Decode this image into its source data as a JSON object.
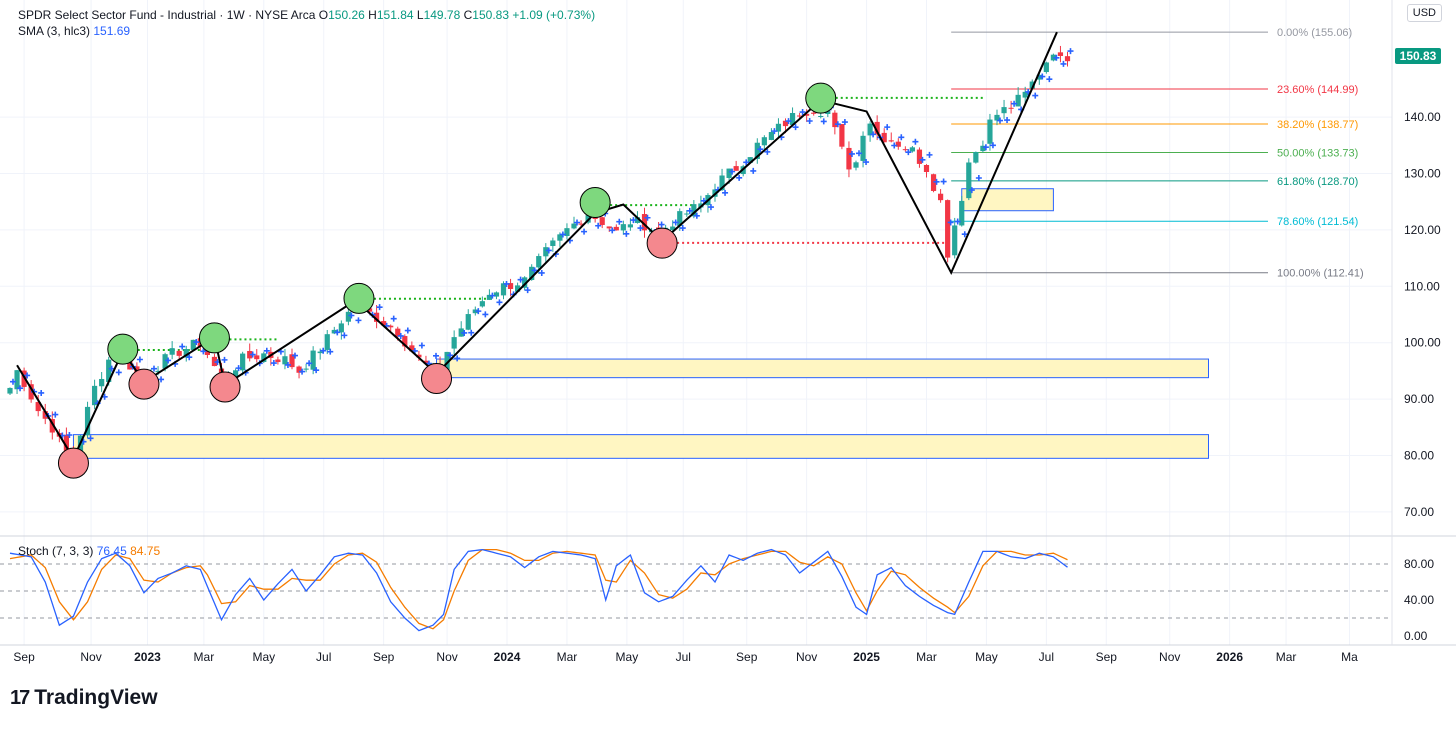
{
  "legend": {
    "title": "SPDR Select Sector Fund - Industrial · 1W · NYSE Arca",
    "open_label": "O",
    "open": "150.26",
    "high_label": "H",
    "high": "151.84",
    "low_label": "L",
    "low": "149.78",
    "close_label": "C",
    "close": "150.83",
    "change": "+1.09 (+0.73%)",
    "sma_label": "SMA (3, hlc3)",
    "sma_value": "151.69",
    "stoch_label": "Stoch (7, 3, 3)",
    "stoch_k": "76.45",
    "stoch_d": "84.75"
  },
  "currency": "USD",
  "last_price": "150.83",
  "brand": {
    "mark": "17",
    "name": "TradingView"
  },
  "colors": {
    "up": "#26a69a",
    "down": "#f23645",
    "sma": "#2962ff",
    "stoch_k": "#2962ff",
    "stoch_d": "#f57c00",
    "grid": "#f0f3fa",
    "zone_fill": "#fff6c2",
    "zone_border": "#2962ff",
    "high_marker": "#7ed87e",
    "low_marker": "#f4888e"
  },
  "chart_data": {
    "type": "candlestick",
    "title": "SPDR Select Sector Fund - Industrial · 1W · NYSE Arca",
    "y_axis": {
      "range": [
        63,
        160
      ],
      "ticks": [
        70,
        80,
        90,
        100,
        110,
        120,
        130,
        140
      ],
      "tick_labels": [
        "70.00",
        "80.00",
        "90.00",
        "100.00",
        "110.00",
        "120.00",
        "130.00",
        "140.00"
      ]
    },
    "x_axis": {
      "range_weeks": [
        0,
        143
      ],
      "ticks": [
        {
          "w": 2,
          "label": "Sep",
          "bold": false
        },
        {
          "w": 11.5,
          "label": "Nov",
          "bold": false
        },
        {
          "w": 19.5,
          "label": "2023",
          "bold": true
        },
        {
          "w": 27.5,
          "label": "Mar",
          "bold": false
        },
        {
          "w": 36,
          "label": "May",
          "bold": false
        },
        {
          "w": 44.5,
          "label": "Jul",
          "bold": false
        },
        {
          "w": 53,
          "label": "Sep",
          "bold": false
        },
        {
          "w": 62,
          "label": "Nov",
          "bold": false
        },
        {
          "w": 70.5,
          "label": "2024",
          "bold": true
        },
        {
          "w": 79,
          "label": "Mar",
          "bold": false
        },
        {
          "w": 87.5,
          "label": "May",
          "bold": false
        },
        {
          "w": 95.5,
          "label": "Jul",
          "bold": false
        },
        {
          "w": 104.5,
          "label": "Sep",
          "bold": false
        },
        {
          "w": 113,
          "label": "Nov",
          "bold": false
        },
        {
          "w": 121.5,
          "label": "2025",
          "bold": true
        },
        {
          "w": 130,
          "label": "Mar",
          "bold": false
        },
        {
          "w": 138.5,
          "label": "May",
          "bold": false
        },
        {
          "w": 147,
          "label": "Jul",
          "bold": false
        },
        {
          "w": 155.5,
          "label": "Sep",
          "bold": false
        },
        {
          "w": 164.5,
          "label": "Nov",
          "bold": false
        },
        {
          "w": 173,
          "label": "2026",
          "bold": true
        },
        {
          "w": 181,
          "label": "Mar",
          "bold": false
        },
        {
          "w": 190,
          "label": "Ma",
          "bold": false
        }
      ]
    },
    "swing_points": [
      {
        "w": 1,
        "price": 96
      },
      {
        "w": 9,
        "price": 79.5
      },
      {
        "w": 16,
        "price": 98.5
      },
      {
        "w": 19,
        "price": 93
      },
      {
        "w": 29,
        "price": 101
      },
      {
        "w": 30.5,
        "price": 92.5
      },
      {
        "w": 49,
        "price": 107.5
      },
      {
        "w": 60.5,
        "price": 94.5
      },
      {
        "w": 83,
        "price": 123
      },
      {
        "w": 87,
        "price": 124.5
      },
      {
        "w": 92.5,
        "price": 118
      },
      {
        "w": 115,
        "price": 143
      },
      {
        "w": 121.5,
        "price": 141
      },
      {
        "w": 133.5,
        "price": 112.41
      },
      {
        "w": 148.5,
        "price": 155.06
      }
    ],
    "swing_highs": [
      {
        "w": 16,
        "price": 98.5
      },
      {
        "w": 29,
        "price": 100.5
      },
      {
        "w": 49.5,
        "price": 107.5
      },
      {
        "w": 83,
        "price": 124.5
      },
      {
        "w": 115,
        "price": 143
      }
    ],
    "swing_lows": [
      {
        "w": 9,
        "price": 79
      },
      {
        "w": 19,
        "price": 93
      },
      {
        "w": 30.5,
        "price": 92.5
      },
      {
        "w": 60.5,
        "price": 94
      },
      {
        "w": 92.5,
        "price": 118
      }
    ],
    "support_zones": [
      {
        "from_w": 9,
        "to_w": 170,
        "low": 79.5,
        "high": 83.7
      },
      {
        "from_w": 60.5,
        "to_w": 170,
        "low": 93.8,
        "high": 97.1
      },
      {
        "from_w": 135,
        "to_w": 148,
        "low": 123.4,
        "high": 127.3
      }
    ],
    "dotted_levels": [
      {
        "from_w": 16,
        "to_w": 29,
        "price": 98.7,
        "color": "green"
      },
      {
        "from_w": 29,
        "to_w": 38,
        "price": 100.6,
        "color": "green"
      },
      {
        "from_w": 49.5,
        "to_w": 68,
        "price": 107.8,
        "color": "green"
      },
      {
        "from_w": 83,
        "to_w": 97,
        "price": 124.4,
        "color": "green"
      },
      {
        "from_w": 115,
        "to_w": 138,
        "price": 143.4,
        "color": "green"
      },
      {
        "from_w": 92.5,
        "to_w": 133,
        "price": 117.7,
        "color": "red"
      }
    ],
    "fibonacci": {
      "from_w": 133.5,
      "to_w": 170,
      "levels": [
        {
          "label": "0.00% (155.06)",
          "price": 155.06,
          "color": "#9598a1"
        },
        {
          "label": "23.60% (144.99)",
          "price": 144.99,
          "color": "#f23645"
        },
        {
          "label": "38.20% (138.77)",
          "price": 138.77,
          "color": "#ff9800"
        },
        {
          "label": "50.00% (133.73)",
          "price": 133.73,
          "color": "#4caf50"
        },
        {
          "label": "61.80% (128.70)",
          "price": 128.7,
          "color": "#089981"
        },
        {
          "label": "78.60% (121.54)",
          "price": 121.54,
          "color": "#00bcd4"
        },
        {
          "label": "100.00% (112.41)",
          "price": 112.41,
          "color": "#787b86"
        }
      ]
    },
    "stochastic": {
      "title": "Stoch (7, 3, 3)",
      "y_ticks": [
        0,
        40,
        80
      ],
      "y_tick_labels": [
        "0.00",
        "40.00",
        "80.00"
      ],
      "bands": [
        20,
        50,
        80
      ],
      "range": [
        -5,
        100
      ],
      "k_anchors": [
        [
          0,
          92
        ],
        [
          3,
          88
        ],
        [
          5,
          60
        ],
        [
          7,
          12
        ],
        [
          9,
          22
        ],
        [
          11,
          60
        ],
        [
          13,
          86
        ],
        [
          15,
          92
        ],
        [
          17,
          78
        ],
        [
          19,
          48
        ],
        [
          21,
          64
        ],
        [
          23,
          70
        ],
        [
          25,
          78
        ],
        [
          27,
          74
        ],
        [
          28,
          55
        ],
        [
          30,
          18
        ],
        [
          32,
          46
        ],
        [
          34,
          64
        ],
        [
          36,
          40
        ],
        [
          38,
          58
        ],
        [
          40,
          74
        ],
        [
          42,
          50
        ],
        [
          44,
          68
        ],
        [
          46,
          88
        ],
        [
          48,
          92
        ],
        [
          50,
          90
        ],
        [
          52,
          70
        ],
        [
          54,
          38
        ],
        [
          56,
          20
        ],
        [
          58,
          6
        ],
        [
          60,
          12
        ],
        [
          61.5,
          24
        ],
        [
          63,
          74
        ],
        [
          65,
          94
        ],
        [
          67,
          96
        ],
        [
          69,
          92
        ],
        [
          71,
          88
        ],
        [
          73,
          76
        ],
        [
          75,
          88
        ],
        [
          77,
          94
        ],
        [
          79,
          92
        ],
        [
          81,
          90
        ],
        [
          83,
          86
        ],
        [
          84.5,
          40
        ],
        [
          86,
          78
        ],
        [
          88,
          90
        ],
        [
          90,
          48
        ],
        [
          92,
          38
        ],
        [
          94,
          44
        ],
        [
          96,
          62
        ],
        [
          98,
          78
        ],
        [
          100,
          60
        ],
        [
          102,
          90
        ],
        [
          104,
          84
        ],
        [
          106,
          92
        ],
        [
          108,
          96
        ],
        [
          110,
          90
        ],
        [
          112,
          70
        ],
        [
          114,
          82
        ],
        [
          116,
          94
        ],
        [
          118,
          66
        ],
        [
          120,
          32
        ],
        [
          121.5,
          24
        ],
        [
          123,
          68
        ],
        [
          125,
          76
        ],
        [
          127,
          56
        ],
        [
          129,
          44
        ],
        [
          131,
          34
        ],
        [
          133,
          26
        ],
        [
          134,
          24
        ],
        [
          136,
          60
        ],
        [
          138,
          94
        ],
        [
          140,
          94
        ],
        [
          142,
          88
        ],
        [
          144,
          86
        ],
        [
          146,
          92
        ],
        [
          148,
          88
        ],
        [
          150,
          76.45
        ]
      ],
      "d_anchors": [
        [
          0,
          86
        ],
        [
          3,
          90
        ],
        [
          5,
          76
        ],
        [
          7,
          38
        ],
        [
          9,
          18
        ],
        [
          11,
          38
        ],
        [
          13,
          74
        ],
        [
          15,
          90
        ],
        [
          17,
          86
        ],
        [
          19,
          62
        ],
        [
          21,
          60
        ],
        [
          23,
          70
        ],
        [
          25,
          76
        ],
        [
          27,
          78
        ],
        [
          28,
          68
        ],
        [
          30,
          36
        ],
        [
          32,
          38
        ],
        [
          34,
          56
        ],
        [
          36,
          52
        ],
        [
          38,
          52
        ],
        [
          40,
          64
        ],
        [
          42,
          62
        ],
        [
          44,
          62
        ],
        [
          46,
          80
        ],
        [
          48,
          90
        ],
        [
          50,
          92
        ],
        [
          52,
          82
        ],
        [
          54,
          54
        ],
        [
          56,
          32
        ],
        [
          58,
          14
        ],
        [
          60,
          8
        ],
        [
          61.5,
          18
        ],
        [
          63,
          50
        ],
        [
          65,
          84
        ],
        [
          67,
          96
        ],
        [
          69,
          96
        ],
        [
          71,
          92
        ],
        [
          73,
          84
        ],
        [
          75,
          84
        ],
        [
          77,
          92
        ],
        [
          79,
          94
        ],
        [
          81,
          92
        ],
        [
          83,
          90
        ],
        [
          84.5,
          62
        ],
        [
          86,
          60
        ],
        [
          88,
          84
        ],
        [
          90,
          70
        ],
        [
          92,
          46
        ],
        [
          94,
          42
        ],
        [
          96,
          52
        ],
        [
          98,
          70
        ],
        [
          100,
          68
        ],
        [
          102,
          80
        ],
        [
          104,
          86
        ],
        [
          106,
          90
        ],
        [
          108,
          94
        ],
        [
          110,
          94
        ],
        [
          112,
          82
        ],
        [
          114,
          78
        ],
        [
          116,
          88
        ],
        [
          118,
          80
        ],
        [
          120,
          48
        ],
        [
          121.5,
          28
        ],
        [
          123,
          50
        ],
        [
          125,
          72
        ],
        [
          127,
          68
        ],
        [
          129,
          54
        ],
        [
          131,
          42
        ],
        [
          133,
          32
        ],
        [
          134,
          26
        ],
        [
          136,
          44
        ],
        [
          138,
          78
        ],
        [
          140,
          94
        ],
        [
          142,
          94
        ],
        [
          144,
          90
        ],
        [
          146,
          90
        ],
        [
          148,
          92
        ],
        [
          150,
          84.75
        ]
      ]
    },
    "price_anchors": [
      [
        0,
        92
      ],
      [
        1,
        95
      ],
      [
        2,
        93
      ],
      [
        4,
        88
      ],
      [
        6,
        85
      ],
      [
        8,
        80
      ],
      [
        9,
        80.5
      ],
      [
        10,
        84
      ],
      [
        12,
        92
      ],
      [
        14,
        97
      ],
      [
        16,
        98
      ],
      [
        18,
        94
      ],
      [
        20,
        95
      ],
      [
        23,
        98
      ],
      [
        25,
        99
      ],
      [
        27,
        100
      ],
      [
        28,
        98
      ],
      [
        30,
        93.5
      ],
      [
        33,
        97
      ],
      [
        36,
        98
      ],
      [
        39,
        97
      ],
      [
        41,
        95
      ],
      [
        44,
        99
      ],
      [
        47,
        104
      ],
      [
        49,
        106.5
      ],
      [
        52,
        104.5
      ],
      [
        55,
        102
      ],
      [
        58,
        97
      ],
      [
        60,
        95
      ],
      [
        61,
        96
      ],
      [
        63,
        101
      ],
      [
        66,
        106
      ],
      [
        68,
        109
      ],
      [
        70,
        110
      ],
      [
        73,
        111
      ],
      [
        76,
        116
      ],
      [
        79,
        120
      ],
      [
        82,
        123
      ],
      [
        84,
        121.5
      ],
      [
        86,
        119.5
      ],
      [
        88,
        121.5
      ],
      [
        90,
        121
      ],
      [
        92,
        119.5
      ],
      [
        94,
        121.5
      ],
      [
        96,
        123
      ],
      [
        98,
        124.5
      ],
      [
        100,
        128
      ],
      [
        103,
        131
      ],
      [
        106,
        135
      ],
      [
        109,
        138
      ],
      [
        112,
        141
      ],
      [
        114,
        141.5
      ],
      [
        116,
        141
      ],
      [
        118,
        134
      ],
      [
        119,
        131.5
      ],
      [
        120,
        132
      ],
      [
        121.5,
        140.5
      ],
      [
        123,
        137
      ],
      [
        125,
        136
      ],
      [
        128,
        134
      ],
      [
        130,
        131
      ],
      [
        132,
        125
      ],
      [
        133,
        116
      ],
      [
        134,
        121
      ],
      [
        135,
        126
      ],
      [
        136,
        132
      ],
      [
        137,
        134
      ],
      [
        138,
        136
      ],
      [
        139,
        139
      ],
      [
        140,
        140.5
      ],
      [
        142,
        142
      ],
      [
        144,
        144
      ],
      [
        146,
        148
      ],
      [
        148,
        152
      ],
      [
        149,
        150
      ],
      [
        150,
        150.83
      ]
    ]
  }
}
